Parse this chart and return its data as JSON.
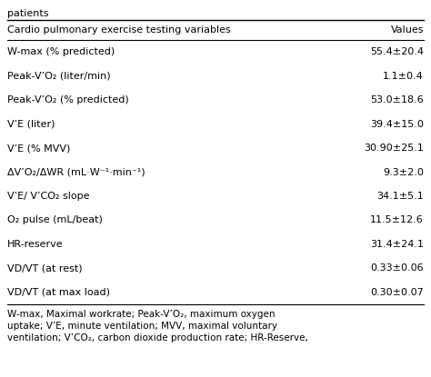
{
  "header_col1": "Cardio pulmonary exercise testing variables",
  "header_col2": "Values",
  "rows": [
    [
      "W-max (% predicted)",
      "55.4±20.4"
    ],
    [
      "Peak-V’O₂ (liter/min)",
      "1.1±0.4"
    ],
    [
      "Peak-V’O₂ (% predicted)",
      "53.0±18.6"
    ],
    [
      "V’E (liter)",
      "39.4±15.0"
    ],
    [
      "V’E (% MVV)",
      "30.90±25.1"
    ],
    [
      "ΔV’O₂/ΔWR (mL·W⁻¹·min⁻¹)",
      "9.3±2.0"
    ],
    [
      "V’E/ V’CO₂ slope",
      "34.1±5.1"
    ],
    [
      "O₂ pulse (mL/beat)",
      "11.5±12.6"
    ],
    [
      "HR-reserve",
      "31.4±24.1"
    ],
    [
      "VD/VT (at rest)",
      "0.33±0.06"
    ],
    [
      "VD/VT (at max load)",
      "0.30±0.07"
    ]
  ],
  "footnote_lines": [
    "W-max, Maximal workrate; Peak-V’O₂, maximum oxygen",
    "uptake; V’E, minute ventilation; MVV, maximal voluntary",
    "ventilation; V’CO₂, carbon dioxide production rate; HR-Reserve,"
  ],
  "title_above": "patients",
  "bg_color": "#ffffff",
  "line_color": "#000000",
  "font_size": 8.0,
  "header_font_size": 8.0,
  "footnote_font_size": 7.5,
  "title_font_size": 8.0
}
